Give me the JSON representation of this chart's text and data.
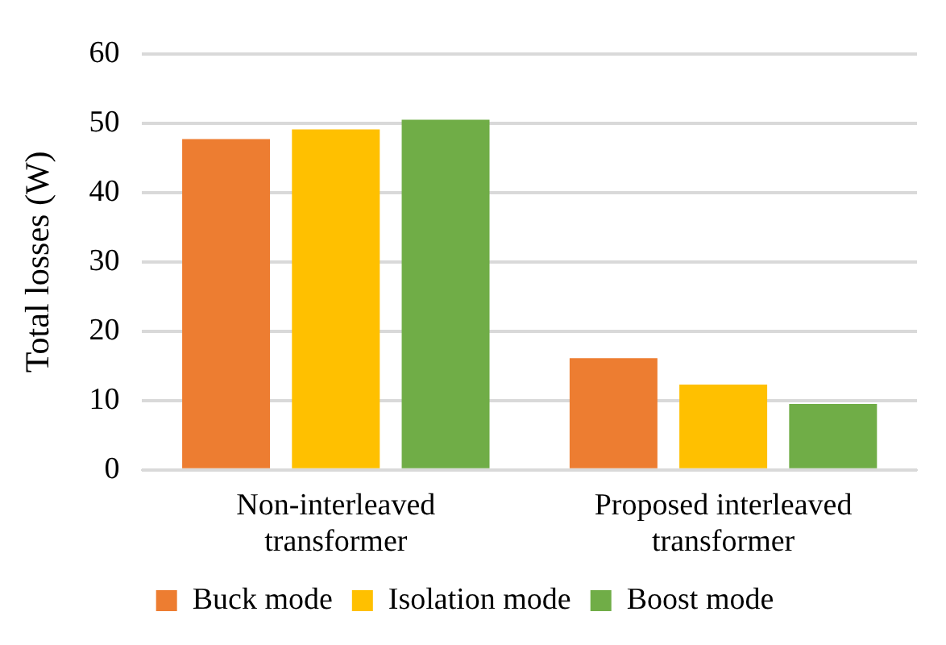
{
  "chart_data": {
    "type": "bar",
    "ylabel": "Total losses (W)",
    "categories": [
      "Non-interleaved\ntransformer",
      "Proposed interleaved\ntransformer"
    ],
    "series": [
      {
        "name": "Buck mode",
        "color": "#ed7d31",
        "values": [
          47.7,
          16.1
        ]
      },
      {
        "name": "Isolation mode",
        "color": "#ffc000",
        "values": [
          49.1,
          12.3
        ]
      },
      {
        "name": "Boost mode",
        "color": "#70ad47",
        "values": [
          50.5,
          9.5
        ]
      }
    ],
    "ylim": [
      0,
      60
    ],
    "yticks": [
      0,
      10,
      20,
      30,
      40,
      50,
      60
    ],
    "grid": "y",
    "legend": "bottom"
  }
}
